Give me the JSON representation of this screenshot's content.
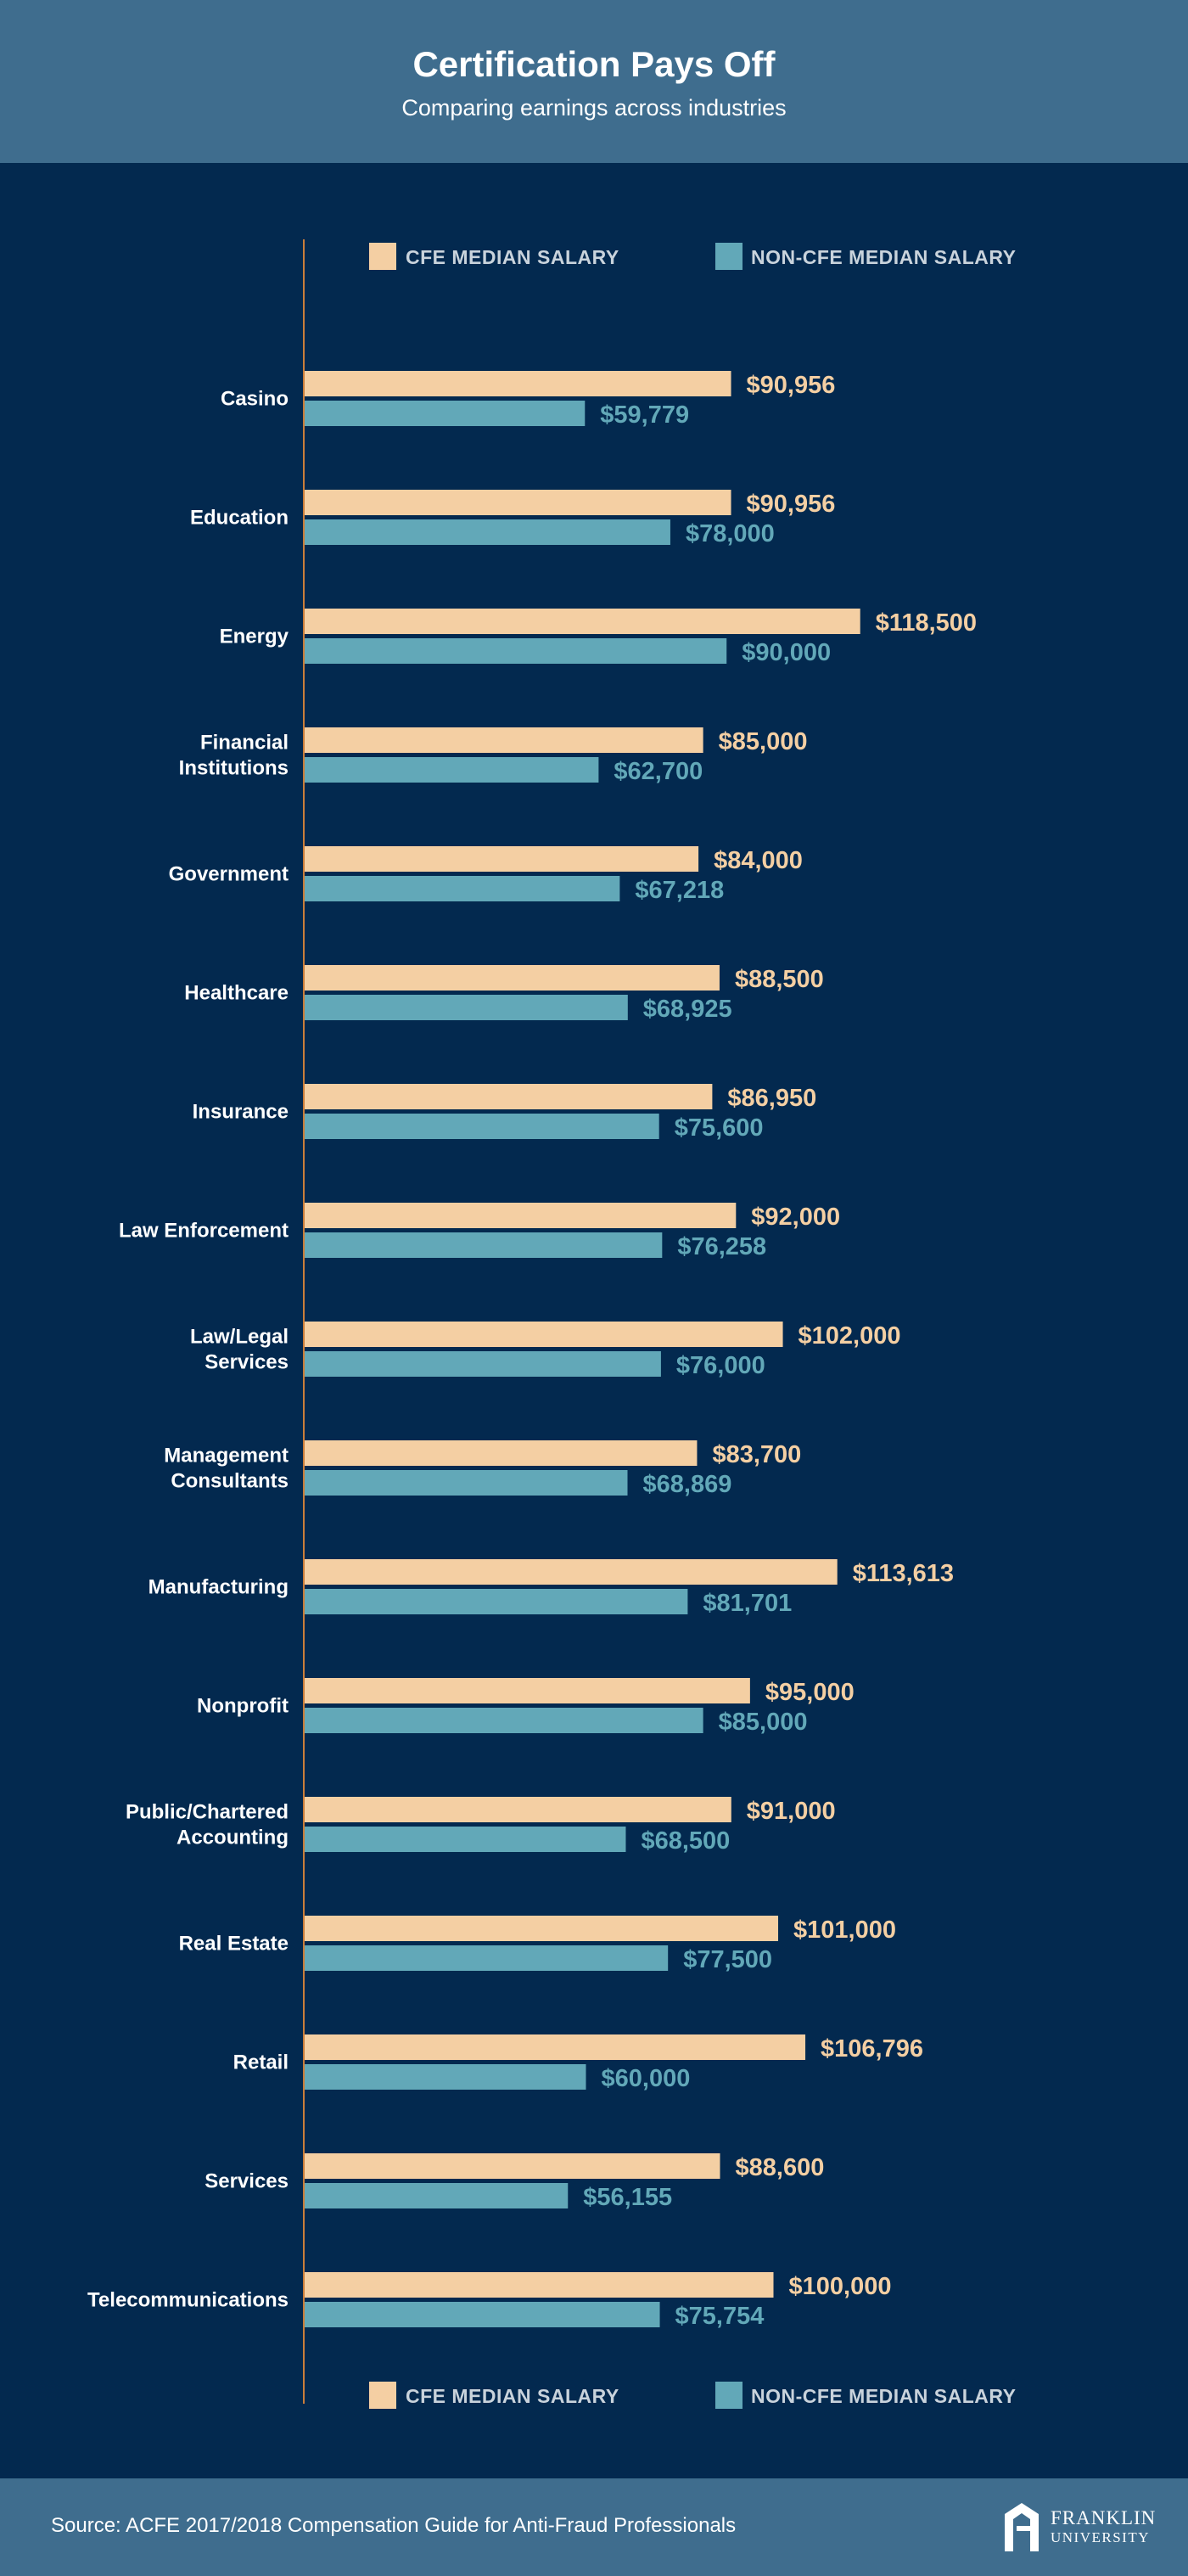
{
  "header": {
    "title": "Certification Pays Off",
    "subtitle": "Comparing earnings across industries"
  },
  "legend": {
    "cfe_label": "CFE MEDIAN SALARY",
    "non_cfe_label": "NON-CFE MEDIAN SALARY"
  },
  "colors": {
    "background": "#03294f",
    "header_footer": "#3f6d8e",
    "cfe": "#f4cfa3",
    "non_cfe": "#62a8b8",
    "axis": "#c97d3a"
  },
  "chart_data": {
    "type": "bar",
    "orientation": "horizontal",
    "categories": [
      [
        "Casino"
      ],
      [
        "Education"
      ],
      [
        "Energy"
      ],
      [
        "Financial",
        "Institutions"
      ],
      [
        "Government"
      ],
      [
        "Healthcare"
      ],
      [
        "Insurance"
      ],
      [
        "Law Enforcement"
      ],
      [
        "Law/Legal",
        "Services"
      ],
      [
        "Management",
        "Consultants"
      ],
      [
        "Manufacturing"
      ],
      [
        "Nonprofit"
      ],
      [
        "Public/Chartered",
        "Accounting"
      ],
      [
        "Real Estate"
      ],
      [
        "Retail"
      ],
      [
        "Services"
      ],
      [
        "Telecommunications"
      ]
    ],
    "series": [
      {
        "name": "CFE MEDIAN SALARY",
        "color": "#f4cfa3",
        "values": [
          90956,
          90956,
          118500,
          85000,
          84000,
          88500,
          86950,
          92000,
          102000,
          83700,
          113613,
          95000,
          91000,
          101000,
          106796,
          88600,
          100000
        ],
        "labels": [
          "$90,956",
          "$90,956",
          "$118,500",
          "$85,000",
          "$84,000",
          "$88,500",
          "$86,950",
          "$92,000",
          "$102,000",
          "$83,700",
          "$113,613",
          "$95,000",
          "$91,000",
          "$101,000",
          "$106,796",
          "$88,600",
          "$100,000"
        ]
      },
      {
        "name": "NON-CFE MEDIAN SALARY",
        "color": "#62a8b8",
        "values": [
          59779,
          78000,
          90000,
          62700,
          67218,
          68925,
          75600,
          76258,
          76000,
          68869,
          81701,
          85000,
          68500,
          77500,
          60000,
          56155,
          75754
        ],
        "labels": [
          "$59,779",
          "$78,000",
          "$90,000",
          "$62,700",
          "$67,218",
          "$68,925",
          "$75,600",
          "$76,258",
          "$76,000",
          "$68,869",
          "$81,701",
          "$85,000",
          "$68,500",
          "$77,500",
          "$60,000",
          "$56,155",
          "$75,754"
        ]
      }
    ],
    "legend_position": "top and bottom",
    "grid": false
  },
  "footer": {
    "source": "Source: ACFE 2017/2018 Compensation Guide for Anti-Fraud Professionals",
    "logo_line1": "FRANKLIN",
    "logo_line2": "UNIVERSITY"
  }
}
